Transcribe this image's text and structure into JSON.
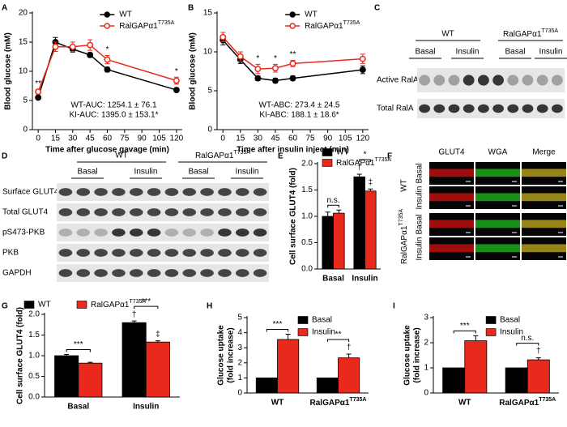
{
  "chart_data": [
    {
      "type": "line",
      "panel": "A",
      "ylabel": "Blood glucose (mM)",
      "xlabel": "Time after glucose gavage (min)",
      "x": [
        0,
        15,
        30,
        45,
        60,
        120
      ],
      "xlim": [
        -5,
        125
      ],
      "xticks": [
        0,
        15,
        30,
        45,
        60,
        75,
        90,
        105,
        120
      ],
      "ylim": [
        0,
        20
      ],
      "yticks": [
        0,
        5,
        10,
        15,
        20
      ],
      "legend": "upper right",
      "series": [
        {
          "name": "WT",
          "color": "#000000",
          "marker": "filled",
          "values": [
            5.5,
            15,
            13.8,
            12.8,
            10.3,
            6.8
          ],
          "errors": [
            0.3,
            0.8,
            0.5,
            0.4,
            0.4,
            0.3
          ]
        },
        {
          "name": "RalGAPα1",
          "name_sup": "T735A",
          "color": "#e8291c",
          "marker": "open",
          "values": [
            6.5,
            14.2,
            14.2,
            14.5,
            12,
            8.4
          ],
          "errors": [
            0.4,
            0.8,
            0.8,
            0.9,
            0.7,
            0.6
          ]
        }
      ],
      "sig": [
        "**",
        null,
        null,
        null,
        "*",
        "*"
      ],
      "notes": [
        "WT-AUC: 1254.1 ± 76.1",
        "KI-AUC: 1395.0 ± 153.1*"
      ]
    },
    {
      "type": "line",
      "panel": "B",
      "ylabel": "Blood glucose (mM)",
      "xlabel": "Time after insulin inject (min)",
      "x": [
        0,
        15,
        30,
        45,
        60,
        120
      ],
      "xlim": [
        -5,
        125
      ],
      "xticks": [
        0,
        15,
        30,
        45,
        60,
        75,
        90,
        105,
        120
      ],
      "ylim": [
        0,
        15
      ],
      "yticks": [
        0,
        5,
        10,
        15
      ],
      "legend": "upper right",
      "series": [
        {
          "name": "WT",
          "color": "#000000",
          "marker": "filled",
          "values": [
            11.5,
            9,
            6.6,
            6.3,
            6.6,
            7.7
          ],
          "errors": [
            0.6,
            0.5,
            0.3,
            0.3,
            0.3,
            0.5
          ]
        },
        {
          "name": "RalGAPα1",
          "name_sup": "T735A",
          "color": "#e8291c",
          "marker": "open",
          "values": [
            11.9,
            9.4,
            7.8,
            7.9,
            8.5,
            9.1
          ],
          "errors": [
            0.6,
            0.6,
            0.6,
            0.5,
            0.4,
            0.6
          ]
        }
      ],
      "sig": [
        null,
        null,
        "*",
        "*",
        "**",
        null
      ],
      "notes": [
        "WT-ABC: 273.4 ± 24.5",
        "KI-ABC: 188.1 ± 18.6*"
      ]
    },
    {
      "type": "bar",
      "panel": "E",
      "ylabel": "Cell surface GLUT4 (fold)",
      "categories": [
        "Basal",
        "Insulin"
      ],
      "ylim": [
        0,
        2
      ],
      "yticks": [
        {
          "value": 0,
          "label": "0.0"
        },
        0.5,
        {
          "value": 1,
          "label": "1.0"
        },
        1.5,
        {
          "value": 2,
          "label": "2.0"
        }
      ],
      "legend": "upper left",
      "series": [
        {
          "name": "WT",
          "color": "#000000",
          "values": [
            1.0,
            1.75
          ],
          "errors": [
            0.08,
            0.05
          ],
          "symbols": [
            null,
            "†"
          ]
        },
        {
          "name": "RalGAPα1",
          "name_sup": "T735A",
          "color": "#e8291c",
          "values": [
            1.06,
            1.48
          ],
          "errors": [
            0.06,
            0.04
          ],
          "symbols": [
            null,
            "‡"
          ]
        }
      ],
      "brackets": [
        "n.s.",
        "*"
      ]
    },
    {
      "type": "bar",
      "panel": "G",
      "ylabel": "Cell surface GLUT4 (fold)",
      "categories": [
        "Basal",
        "Insulin"
      ],
      "ylim": [
        0,
        2
      ],
      "yticks": [
        {
          "value": 0,
          "label": "0.0"
        },
        0.5,
        {
          "value": 1,
          "label": "1.0"
        },
        1.5,
        {
          "value": 2,
          "label": "2.0"
        }
      ],
      "legend": "top",
      "series": [
        {
          "name": "WT",
          "color": "#000000",
          "values": [
            1.0,
            1.8
          ],
          "errors": [
            0.03,
            0.04
          ],
          "symbols": [
            null,
            "†"
          ]
        },
        {
          "name": "RalGAPα1",
          "name_sup": "T735A",
          "color": "#e8291c",
          "values": [
            0.82,
            1.33
          ],
          "errors": [
            0.02,
            0.03
          ],
          "symbols": [
            null,
            "‡"
          ]
        }
      ],
      "brackets": [
        "***",
        "***"
      ]
    },
    {
      "type": "bar",
      "panel": "H",
      "ylabel": [
        "Glucose uptake",
        "(fold increase)"
      ],
      "categories": [
        "WT",
        "RalGAPα1"
      ],
      "category_sups": [
        null,
        "T735A"
      ],
      "ylim": [
        0,
        5
      ],
      "yticks": [
        0,
        1,
        2,
        3,
        4,
        5
      ],
      "legend": "upper right",
      "series": [
        {
          "name": "Basal",
          "color": "#000000",
          "values": [
            1,
            1
          ]
        },
        {
          "name": "Insulin",
          "color": "#e8291c",
          "values": [
            3.55,
            2.33
          ],
          "errors": [
            0.35,
            0.25
          ],
          "symbols": [
            null,
            "†"
          ]
        }
      ],
      "brackets": [
        "***",
        "**"
      ]
    },
    {
      "type": "bar",
      "panel": "I",
      "ylabel": [
        "Glucose uptake",
        "(fold increase)"
      ],
      "categories": [
        "WT",
        "RalGAPα1"
      ],
      "category_sups": [
        null,
        "T735A"
      ],
      "ylim": [
        0,
        3
      ],
      "yticks": [
        0,
        1,
        2,
        3
      ],
      "legend": "upper right",
      "series": [
        {
          "name": "Basal",
          "color": "#000000",
          "values": [
            1,
            1
          ]
        },
        {
          "name": "Insulin",
          "color": "#e8291c",
          "values": [
            2.08,
            1.32
          ],
          "errors": [
            0.2,
            0.08
          ],
          "symbols": [
            null,
            "†"
          ]
        }
      ],
      "brackets": [
        "***",
        "n.s."
      ]
    }
  ],
  "blots": {
    "C": {
      "panel": "C",
      "groups": [
        {
          "name": "WT"
        },
        {
          "name": "RalGAPα1",
          "name_sup": "T735A"
        }
      ],
      "lanes": [
        "Basal",
        "Insulin",
        "Basal",
        "Insulin"
      ],
      "rows": [
        "Active RalA",
        "Total RalA"
      ]
    },
    "D": {
      "panel": "D",
      "groups": [
        {
          "name": "WT"
        },
        {
          "name": "RalGAPα1",
          "name_sup": "T735A"
        }
      ],
      "lanes": [
        "Basal",
        "Insulin",
        "Basal",
        "Insulin"
      ],
      "rows": [
        "Surface GLUT4",
        "Total GLUT4",
        "pS473-PKB",
        "PKB",
        "GAPDH"
      ]
    },
    "F": {
      "panel": "F",
      "columns": [
        "GLUT4",
        "WGA",
        "Merge"
      ],
      "groups": [
        {
          "name": "WT",
          "conditions": [
            "Basal",
            "Insulin"
          ]
        },
        {
          "name": "RalGAPα1",
          "name_sup": "T735A",
          "conditions": [
            "Basal",
            "Insulin"
          ]
        }
      ]
    }
  }
}
